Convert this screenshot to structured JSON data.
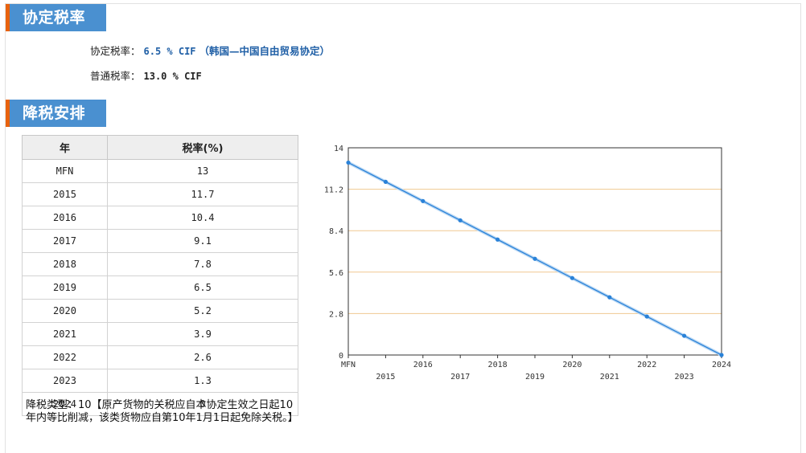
{
  "sections": {
    "rate_title": "协定税率",
    "schedule_title": "降税安排"
  },
  "rates": {
    "agreement_label": "协定税率：",
    "agreement_value": "6.5 % CIF",
    "agreement_note": "（韩国—中国自由贸易协定）",
    "general_label": "普通税率：",
    "general_value": "13.0 % CIF"
  },
  "table": {
    "headers": [
      "年",
      "税率(%)"
    ],
    "rows": [
      {
        "year": "MFN",
        "rate": "13"
      },
      {
        "year": "2015",
        "rate": "11.7"
      },
      {
        "year": "2016",
        "rate": "10.4"
      },
      {
        "year": "2017",
        "rate": "9.1"
      },
      {
        "year": "2018",
        "rate": "7.8"
      },
      {
        "year": "2019",
        "rate": "6.5"
      },
      {
        "year": "2020",
        "rate": "5.2"
      },
      {
        "year": "2021",
        "rate": "3.9"
      },
      {
        "year": "2022",
        "rate": "2.6"
      },
      {
        "year": "2023",
        "rate": "1.3"
      },
      {
        "year": "2024",
        "rate": "0"
      }
    ]
  },
  "note": "降税类型：10【原产货物的关税应自本协定生效之日起10年内等比削减，该类货物应自第10年1月1日起免除关税。】",
  "chart_data": {
    "type": "line",
    "categories": [
      "MFN",
      "2015",
      "2016",
      "2017",
      "2018",
      "2019",
      "2020",
      "2021",
      "2022",
      "2023",
      "2024"
    ],
    "values": [
      13,
      11.7,
      10.4,
      9.1,
      7.8,
      6.5,
      5.2,
      3.9,
      2.6,
      1.3,
      0
    ],
    "ylim": [
      0,
      14
    ],
    "yticks": [
      "0",
      "2.8",
      "5.6",
      "8.4",
      "11.2",
      "14"
    ],
    "grid": true,
    "colors": {
      "line": "#2a82d8",
      "grid": "#f0c890",
      "axis": "#333333"
    }
  }
}
